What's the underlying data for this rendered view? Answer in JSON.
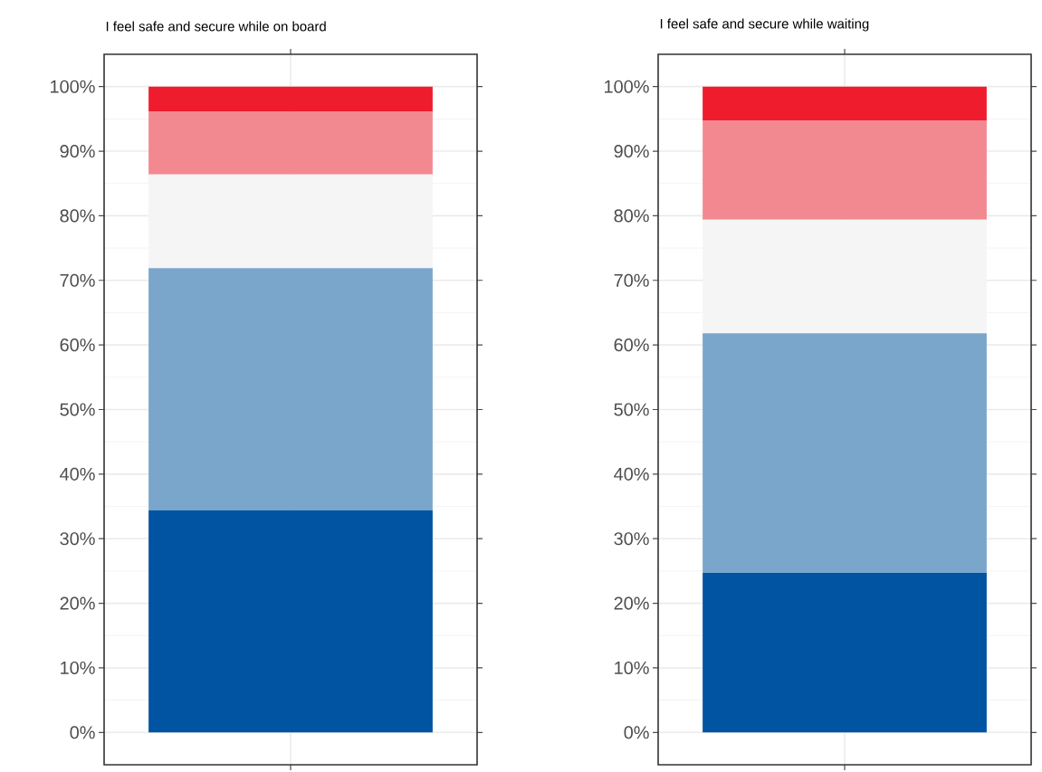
{
  "chart_data": [
    {
      "type": "bar",
      "stacked": true,
      "title": "I feel safe and secure while on board",
      "categories": [
        null
      ],
      "series": [
        {
          "color": "#0054a2",
          "values": [
            34.4
          ]
        },
        {
          "color": "#7ba6cb",
          "values": [
            37.5
          ]
        },
        {
          "color": "#f5f5f5",
          "values": [
            14.5
          ]
        },
        {
          "color": "#f28890",
          "values": [
            9.7
          ]
        },
        {
          "color": "#ef1c2e",
          "values": [
            3.9
          ]
        }
      ],
      "ylim": [
        -5,
        105
      ],
      "yticks": [
        {
          "value": 0,
          "label": "0%"
        },
        {
          "value": 10,
          "label": "10%"
        },
        {
          "value": 20,
          "label": "20%"
        },
        {
          "value": 30,
          "label": "30%"
        },
        {
          "value": 40,
          "label": "40%"
        },
        {
          "value": 50,
          "label": "50%"
        },
        {
          "value": 60,
          "label": "60%"
        },
        {
          "value": 70,
          "label": "70%"
        },
        {
          "value": 80,
          "label": "80%"
        },
        {
          "value": 90,
          "label": "90%"
        },
        {
          "value": 100,
          "label": "100%"
        }
      ],
      "grid": true
    },
    {
      "type": "bar",
      "stacked": true,
      "title": "I feel safe and secure while waiting",
      "categories": [
        null
      ],
      "series": [
        {
          "color": "#0054a2",
          "values": [
            24.7
          ]
        },
        {
          "color": "#7ba6cb",
          "values": [
            37.1
          ]
        },
        {
          "color": "#f5f5f5",
          "values": [
            17.6
          ]
        },
        {
          "color": "#f28890",
          "values": [
            15.3
          ]
        },
        {
          "color": "#ef1c2e",
          "values": [
            5.3
          ]
        }
      ],
      "ylim": [
        -5,
        105
      ],
      "yticks": [
        {
          "value": 0,
          "label": "0%"
        },
        {
          "value": 10,
          "label": "10%"
        },
        {
          "value": 20,
          "label": "20%"
        },
        {
          "value": 30,
          "label": "30%"
        },
        {
          "value": 40,
          "label": "40%"
        },
        {
          "value": 50,
          "label": "50%"
        },
        {
          "value": 60,
          "label": "60%"
        },
        {
          "value": 70,
          "label": "70%"
        },
        {
          "value": 80,
          "label": "80%"
        },
        {
          "value": 90,
          "label": "90%"
        },
        {
          "value": 100,
          "label": "100%"
        }
      ],
      "grid": true
    }
  ]
}
